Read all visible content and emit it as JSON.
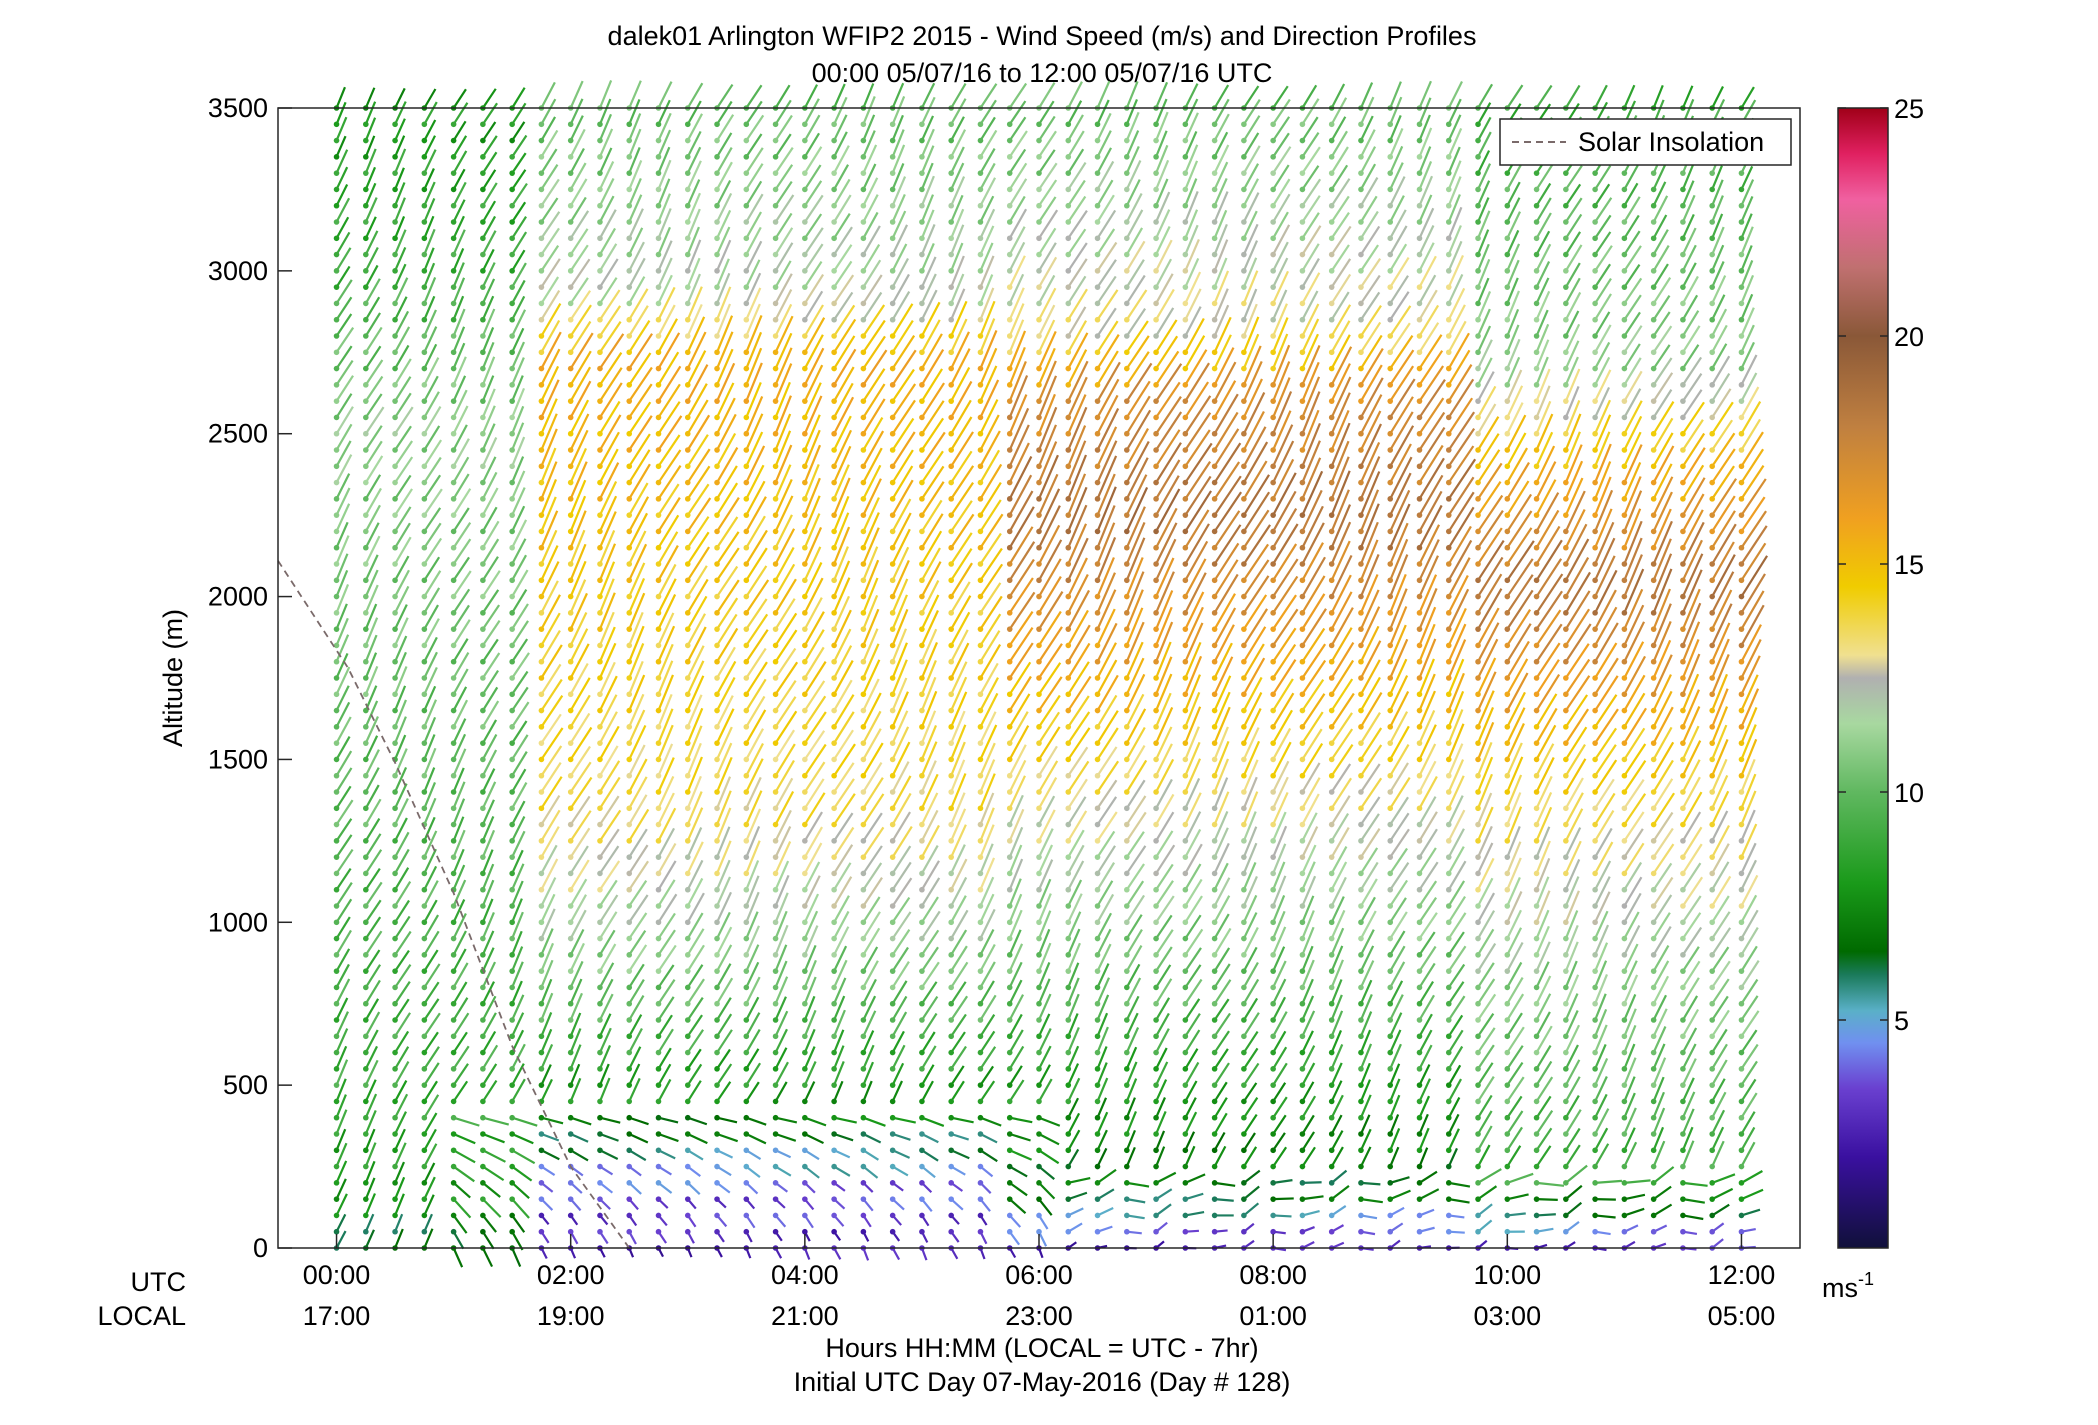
{
  "chart_data": {
    "type": "wind-barb-profile",
    "title": "dalek01 Arlington WFIP2 2015 - Wind Speed (m/s) and Direction Profiles",
    "subtitle": "00:00 05/07/16 to 12:00 05/07/16  UTC",
    "ylabel": "Altitude (m)",
    "ylim": [
      0,
      3500
    ],
    "yticks": [
      "0",
      "500",
      "1000",
      "1500",
      "2000",
      "2500",
      "3000",
      "3500"
    ],
    "xlim_hours": [
      -0.5,
      12.5
    ],
    "utc_row_label": "UTC",
    "local_row_label": "LOCAL",
    "utc_ticks": [
      "00:00",
      "02:00",
      "04:00",
      "06:00",
      "08:00",
      "10:00",
      "12:00"
    ],
    "local_ticks": [
      "17:00",
      "19:00",
      "21:00",
      "23:00",
      "01:00",
      "03:00",
      "05:00"
    ],
    "xlabel": "Hours HH:MM  (LOCAL = UTC - 7hr)",
    "footer": "Initial UTC Day 07-May-2016 (Day # 128)",
    "legend": {
      "label": "Solar Insolation",
      "placement": "top-right",
      "style": "dashed",
      "color": "#7a6a6a"
    },
    "colorbar": {
      "min": 0,
      "max": 25,
      "ticks": [
        "5",
        "10",
        "15",
        "20",
        "25"
      ],
      "unit_base": "ms",
      "unit_exp": "-1",
      "stops": [
        [
          0,
          "#10103a"
        ],
        [
          2,
          "#3a10a0"
        ],
        [
          3.5,
          "#6a40d0"
        ],
        [
          4.5,
          "#7090f0"
        ],
        [
          5.2,
          "#5ab0c8"
        ],
        [
          6,
          "#1a7a5a"
        ],
        [
          6.5,
          "#006a00"
        ],
        [
          8,
          "#1a9a1a"
        ],
        [
          10,
          "#60b860"
        ],
        [
          11.5,
          "#a8d8a0"
        ],
        [
          12.5,
          "#b0b0b0"
        ],
        [
          13,
          "#f0e090"
        ],
        [
          14.5,
          "#f0cc00"
        ],
        [
          16,
          "#f0a020"
        ],
        [
          18,
          "#c08040"
        ],
        [
          20,
          "#8a5838"
        ],
        [
          21.5,
          "#c07070"
        ],
        [
          23,
          "#f060a0"
        ],
        [
          24,
          "#e02060"
        ],
        [
          25,
          "#a00018"
        ]
      ]
    },
    "solar_insolation": {
      "x_hours": [
        -0.5,
        0.1,
        0.5,
        1.0,
        1.5,
        2.0,
        2.5
      ],
      "altitude_m": [
        2110,
        1780,
        1490,
        1090,
        620,
        250,
        0
      ]
    },
    "barb_times_hours": [
      0,
      0.25,
      0.5,
      0.75,
      1,
      1.25,
      1.5,
      1.75,
      2,
      2.25,
      2.5,
      2.75,
      3,
      3.25,
      3.5,
      3.75,
      4,
      4.25,
      4.5,
      4.75,
      5,
      5.25,
      5.5,
      5.75,
      6,
      6.25,
      6.5,
      6.75,
      7,
      7.25,
      7.5,
      7.75,
      8,
      8.25,
      8.5,
      8.75,
      9,
      9.25,
      9.5,
      9.75,
      10,
      10.25,
      10.5,
      10.75,
      11,
      11.25,
      11.5,
      11.75,
      12
    ],
    "barb_altitude_step_m": 50,
    "speed_profile_regimes": [
      {
        "time_range_hours": [
          0,
          1.5
        ],
        "speed_ms": {
          "0": 6,
          "150": 8,
          "500": 9,
          "1500": 10,
          "2500": 11,
          "3000": 9,
          "3500": 8
        },
        "top_m": 3500
      },
      {
        "time_range_hours": [
          1.5,
          5.5
        ],
        "speed_ms": {
          "0": 2.5,
          "200": 4,
          "450": 8,
          "900": 11,
          "1300": 13.5,
          "2000": 14.5,
          "2700": 15.5,
          "2900": 12,
          "3500": 10
        },
        "top_m": 3500
      },
      {
        "time_range_hours": [
          5.5,
          9.5
        ],
        "speed_ms": {
          "0": 2.5,
          "150": 6.5,
          "600": 9,
          "1200": 12,
          "1800": 16,
          "2200": 18.5,
          "2600": 17,
          "2800": 13,
          "3500": 10
        },
        "top_m": 3500
      },
      {
        "time_range_hours": [
          9.5,
          12
        ],
        "speed_ms": {
          "0": 3,
          "200": 9,
          "800": 11,
          "1400": 14,
          "2000": 18.5,
          "2400": 15,
          "2700": 11,
          "3500": 9
        },
        "top_m": 3500
      }
    ],
    "direction_note": "Barbs from the south-west aloft (tilted right); weak easterly / variable flow near the surface"
  }
}
